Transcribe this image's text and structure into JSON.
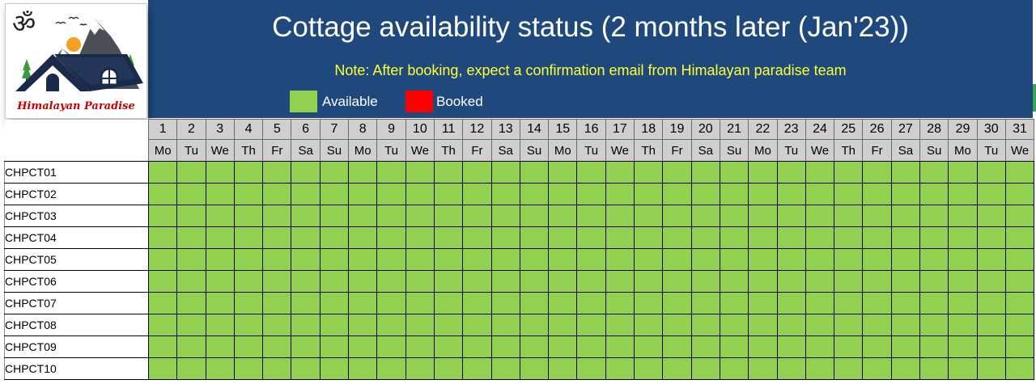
{
  "header": {
    "title": "Cottage availability status (2 months later (Jan'23))",
    "note": "Note: After booking, expect a confirmation email from Himalayan paradise team"
  },
  "brand": {
    "name": "Himalayan Paradise",
    "symbol": "ॐ"
  },
  "legend": [
    {
      "label": "Available",
      "color": "#92d050"
    },
    {
      "label": "Booked",
      "color": "#ff0000"
    }
  ],
  "colors": {
    "banner": "#1f497d",
    "note": "#ffff33",
    "available": "#92d050",
    "booked": "#ff0000",
    "header_gray": "#d0cece"
  },
  "calendar": {
    "days": [
      "1",
      "2",
      "3",
      "4",
      "5",
      "6",
      "7",
      "8",
      "9",
      "10",
      "11",
      "12",
      "13",
      "14",
      "15",
      "16",
      "17",
      "18",
      "19",
      "20",
      "21",
      "22",
      "23",
      "24",
      "25",
      "26",
      "27",
      "28",
      "29",
      "30",
      "31"
    ],
    "weekdays": [
      "Mo",
      "Tu",
      "We",
      "Th",
      "Fr",
      "Sa",
      "Su",
      "Mo",
      "Tu",
      "We",
      "Th",
      "Fr",
      "Sa",
      "Su",
      "Mo",
      "Tu",
      "We",
      "Th",
      "Fr",
      "Sa",
      "Su",
      "Mo",
      "Tu",
      "We",
      "Th",
      "Fr",
      "Sa",
      "Su",
      "Mo",
      "Tu",
      "We"
    ]
  },
  "cottages": [
    {
      "name": "CHPCT01",
      "booked_days": []
    },
    {
      "name": "CHPCT02",
      "booked_days": []
    },
    {
      "name": "CHPCT03",
      "booked_days": []
    },
    {
      "name": "CHPCT04",
      "booked_days": []
    },
    {
      "name": "CHPCT05",
      "booked_days": []
    },
    {
      "name": "CHPCT06",
      "booked_days": []
    },
    {
      "name": "CHPCT07",
      "booked_days": []
    },
    {
      "name": "CHPCT08",
      "booked_days": []
    },
    {
      "name": "CHPCT09",
      "booked_days": []
    },
    {
      "name": "CHPCT10",
      "booked_days": []
    }
  ]
}
